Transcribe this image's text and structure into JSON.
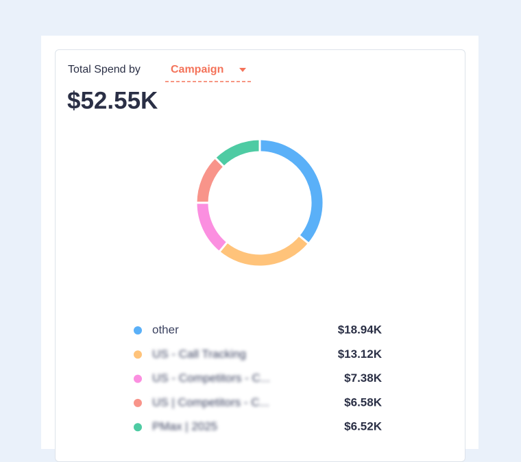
{
  "header": {
    "label": "Total Spend by",
    "dropdown": "Campaign",
    "total": "$52.55K"
  },
  "chart_data": {
    "type": "pie",
    "categories": [
      "other",
      "US - Call Tracking",
      "US - Competitors - C...",
      "US | Competitors - C...",
      "PMax | 2025"
    ],
    "values": [
      18.94,
      13.12,
      7.38,
      6.58,
      6.52
    ],
    "value_labels": [
      "$18.94K",
      "$13.12K",
      "$7.38K",
      "$6.58K",
      "$6.52K"
    ],
    "colors": [
      "#5ab0f8",
      "#ffc37a",
      "#fb8fe0",
      "#f8948a",
      "#4ecba3"
    ]
  }
}
